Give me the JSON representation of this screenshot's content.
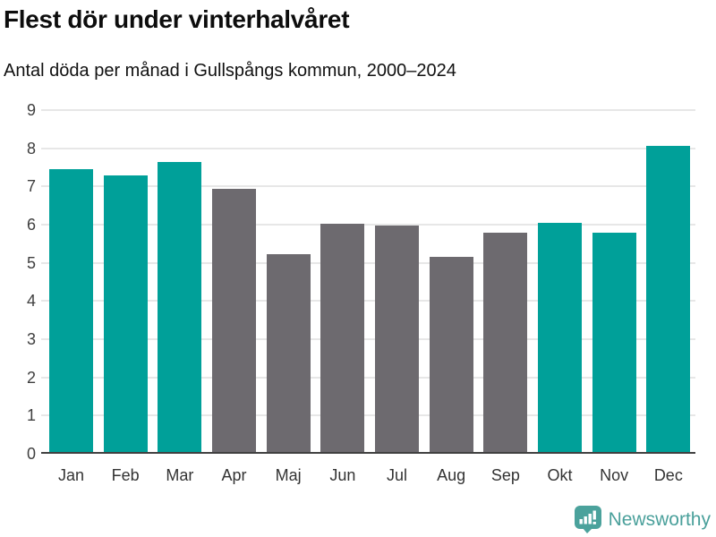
{
  "header": {
    "title": "Flest dör under vinterhalvåret",
    "subtitle": "Antal döda per månad i Gullspångs kommun, 2000–2024"
  },
  "chart_data": {
    "type": "bar",
    "title": "Flest dör under vinterhalvåret",
    "subtitle": "Antal döda per månad i Gullspångs kommun, 2000–2024",
    "categories": [
      "Jan",
      "Feb",
      "Mar",
      "Apr",
      "Maj",
      "Jun",
      "Jul",
      "Aug",
      "Sep",
      "Okt",
      "Nov",
      "Dec"
    ],
    "values": [
      7.45,
      7.28,
      7.63,
      6.93,
      5.22,
      6.02,
      5.97,
      5.16,
      5.8,
      6.05,
      5.78,
      8.07
    ],
    "xlabel": "",
    "ylabel": "",
    "ylim": [
      0,
      9
    ],
    "yticks": [
      0,
      1,
      2,
      3,
      4,
      5,
      6,
      7,
      8,
      9
    ],
    "grid": true,
    "legend": false,
    "highlighted_categories": [
      "Jan",
      "Feb",
      "Mar",
      "Okt",
      "Nov",
      "Dec"
    ],
    "colors": {
      "highlight": "#00a099",
      "default": "#6d6a6f",
      "gridline": "#e7e7e7",
      "axis_line": "#404040",
      "tick_label": "#3f3f3f"
    }
  },
  "footer": {
    "brand": "Newsworthy",
    "brand_color": "#4aa09b",
    "logo_icon": "newsworthy-chart-bubble-icon"
  }
}
